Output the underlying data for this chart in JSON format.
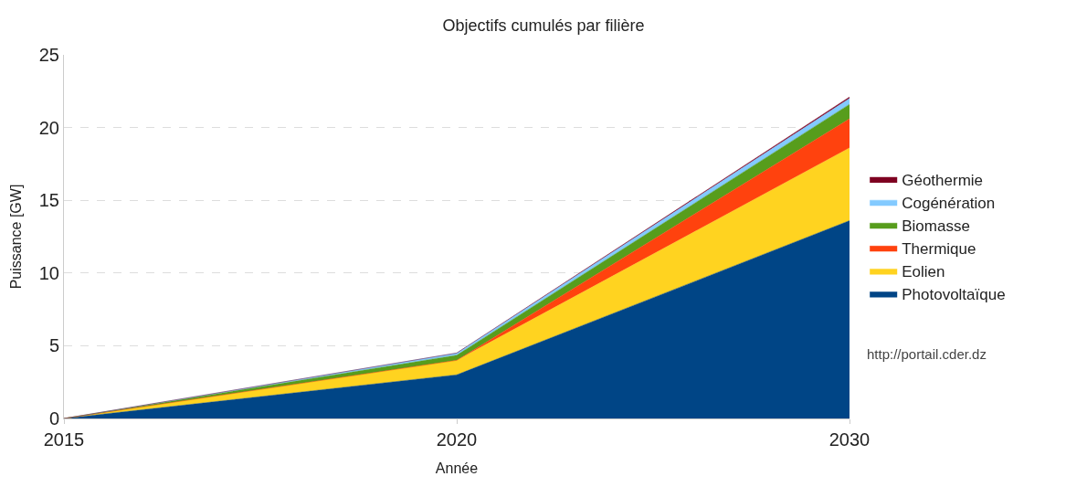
{
  "chart_data": {
    "type": "area",
    "stacked": true,
    "title": "Objectifs cumulés par filière",
    "xlabel": "Année",
    "ylabel": "Puissance [GW]",
    "categories": [
      "2015",
      "2020",
      "2030"
    ],
    "series": [
      {
        "name": "Photovoltaïque",
        "color": "#004586",
        "values": [
          0,
          3.0,
          13.6
        ]
      },
      {
        "name": "Eolien",
        "color": "#ffd320",
        "values": [
          0,
          1.0,
          5.0
        ]
      },
      {
        "name": "Thermique",
        "color": "#ff420e",
        "values": [
          0,
          0,
          2.0
        ]
      },
      {
        "name": "Biomasse",
        "color": "#579d1c",
        "values": [
          0,
          0.35,
          1.0
        ]
      },
      {
        "name": "Cogénération",
        "color": "#83caff",
        "values": [
          0,
          0.15,
          0.4
        ]
      },
      {
        "name": "Géothermie",
        "color": "#7e0021",
        "values": [
          0,
          0,
          0.1
        ]
      }
    ],
    "ylim": [
      0,
      25
    ],
    "yticks": [
      0,
      5,
      10,
      15,
      20,
      25
    ],
    "grid": "y",
    "legend": "right",
    "annotations": [
      "http://portail.cder.dz"
    ]
  }
}
